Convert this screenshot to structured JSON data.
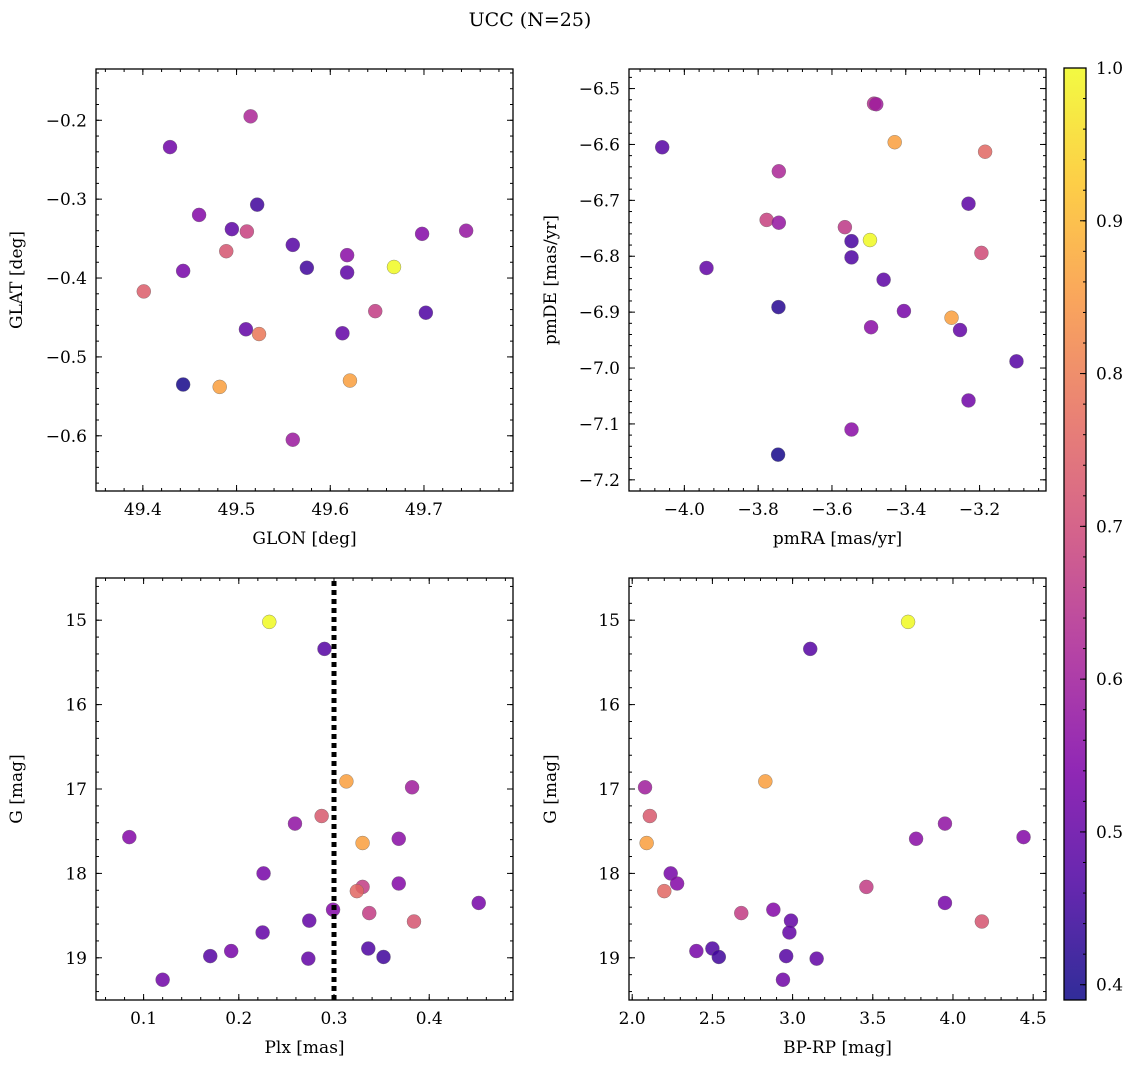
{
  "figure_title": "UCC (N=25)",
  "colorbar": {
    "min": 0.39,
    "max": 1.0,
    "ticks": [
      0.4,
      0.5,
      0.6,
      0.7,
      0.8,
      0.9,
      1.0
    ],
    "tick_labels": [
      "0.4",
      "0.5",
      "0.6",
      "0.7",
      "0.8",
      "0.9",
      "1.0"
    ],
    "colormap": "plasma"
  },
  "chart_data": [
    {
      "type": "scatter",
      "xlabel": "GLON [deg]",
      "ylabel": "GLAT [deg]",
      "xlim": [
        49.35,
        49.795
      ],
      "ylim": [
        -0.67,
        -0.135
      ],
      "xticks": [
        49.4,
        49.5,
        49.6,
        49.7
      ],
      "xtick_labels": [
        "49.4",
        "49.5",
        "49.6",
        "49.7"
      ],
      "yticks": [
        -0.2,
        -0.3,
        -0.4,
        -0.5,
        -0.6
      ],
      "ytick_labels": [
        "−0.2",
        "−0.3",
        "−0.4",
        "−0.5",
        "−0.6"
      ],
      "y_inverted": false,
      "points": [
        {
          "x": 49.429,
          "y": -0.234,
          "c": 0.52
        },
        {
          "x": 49.515,
          "y": -0.195,
          "c": 0.62
        },
        {
          "x": 49.46,
          "y": -0.32,
          "c": 0.55
        },
        {
          "x": 49.495,
          "y": -0.338,
          "c": 0.49
        },
        {
          "x": 49.511,
          "y": -0.341,
          "c": 0.68
        },
        {
          "x": 49.522,
          "y": -0.307,
          "c": 0.45
        },
        {
          "x": 49.489,
          "y": -0.366,
          "c": 0.72
        },
        {
          "x": 49.443,
          "y": -0.391,
          "c": 0.53
        },
        {
          "x": 49.401,
          "y": -0.417,
          "c": 0.74
        },
        {
          "x": 49.56,
          "y": -0.358,
          "c": 0.48
        },
        {
          "x": 49.575,
          "y": -0.387,
          "c": 0.45
        },
        {
          "x": 49.618,
          "y": -0.371,
          "c": 0.56
        },
        {
          "x": 49.618,
          "y": -0.393,
          "c": 0.49
        },
        {
          "x": 49.668,
          "y": -0.386,
          "c": 1.0
        },
        {
          "x": 49.698,
          "y": -0.344,
          "c": 0.55
        },
        {
          "x": 49.745,
          "y": -0.34,
          "c": 0.58
        },
        {
          "x": 49.648,
          "y": -0.442,
          "c": 0.67
        },
        {
          "x": 49.702,
          "y": -0.444,
          "c": 0.47
        },
        {
          "x": 49.51,
          "y": -0.465,
          "c": 0.5
        },
        {
          "x": 49.524,
          "y": -0.471,
          "c": 0.79
        },
        {
          "x": 49.613,
          "y": -0.47,
          "c": 0.5
        },
        {
          "x": 49.443,
          "y": -0.535,
          "c": 0.4
        },
        {
          "x": 49.482,
          "y": -0.538,
          "c": 0.86
        },
        {
          "x": 49.621,
          "y": -0.53,
          "c": 0.86
        },
        {
          "x": 49.56,
          "y": -0.605,
          "c": 0.59
        }
      ]
    },
    {
      "type": "scatter",
      "xlabel": "pmRA [mas/yr]",
      "ylabel": "pmDE [mas/yr]",
      "xlim": [
        -4.15,
        -3.02
      ],
      "ylim": [
        -7.22,
        -6.465
      ],
      "xticks": [
        -4.0,
        -3.8,
        -3.6,
        -3.4,
        -3.2
      ],
      "xtick_labels": [
        "−4.0",
        "−3.8",
        "−3.6",
        "−3.4",
        "−3.2"
      ],
      "yticks": [
        -6.5,
        -6.6,
        -6.7,
        -6.8,
        -6.9,
        -7.0,
        -7.1,
        -7.2
      ],
      "ytick_labels": [
        "−6.5",
        "−6.6",
        "−6.7",
        "−6.8",
        "−6.9",
        "−7.0",
        "−7.1",
        "−7.2"
      ],
      "y_inverted": false,
      "points": [
        {
          "x": -4.06,
          "y": -6.605,
          "c": 0.48
        },
        {
          "x": -3.94,
          "y": -6.821,
          "c": 0.5
        },
        {
          "x": -3.744,
          "y": -6.648,
          "c": 0.62
        },
        {
          "x": -3.777,
          "y": -6.735,
          "c": 0.68
        },
        {
          "x": -3.744,
          "y": -6.74,
          "c": 0.58
        },
        {
          "x": -3.745,
          "y": -6.891,
          "c": 0.42
        },
        {
          "x": -3.746,
          "y": -7.155,
          "c": 0.4
        },
        {
          "x": -3.565,
          "y": -6.748,
          "c": 0.66
        },
        {
          "x": -3.547,
          "y": -6.773,
          "c": 0.46
        },
        {
          "x": -3.547,
          "y": -6.802,
          "c": 0.47
        },
        {
          "x": -3.547,
          "y": -7.11,
          "c": 0.56
        },
        {
          "x": -3.497,
          "y": -6.771,
          "c": 1.0
        },
        {
          "x": -3.486,
          "y": -6.527,
          "c": 0.64
        },
        {
          "x": -3.48,
          "y": -6.528,
          "c": 0.6
        },
        {
          "x": -3.46,
          "y": -6.842,
          "c": 0.49
        },
        {
          "x": -3.43,
          "y": -6.596,
          "c": 0.86
        },
        {
          "x": -3.405,
          "y": -6.898,
          "c": 0.53
        },
        {
          "x": -3.494,
          "y": -6.927,
          "c": 0.56
        },
        {
          "x": -3.276,
          "y": -6.91,
          "c": 0.86
        },
        {
          "x": -3.253,
          "y": -6.932,
          "c": 0.5
        },
        {
          "x": -3.23,
          "y": -6.706,
          "c": 0.49
        },
        {
          "x": -3.23,
          "y": -7.058,
          "c": 0.52
        },
        {
          "x": -3.195,
          "y": -6.794,
          "c": 0.7
        },
        {
          "x": -3.185,
          "y": -6.613,
          "c": 0.76
        },
        {
          "x": -3.1,
          "y": -6.988,
          "c": 0.48
        }
      ]
    },
    {
      "type": "scatter",
      "xlabel": "Plx [mas]",
      "ylabel": "G [mag]",
      "xlim": [
        0.05,
        0.488
      ],
      "ylim": [
        14.5,
        19.5
      ],
      "xticks": [
        0.1,
        0.2,
        0.3,
        0.4
      ],
      "xtick_labels": [
        "0.1",
        "0.2",
        "0.3",
        "0.4"
      ],
      "yticks": [
        15,
        16,
        17,
        18,
        19
      ],
      "ytick_labels": [
        "15",
        "16",
        "17",
        "18",
        "19"
      ],
      "y_inverted": true,
      "vline": {
        "x": 0.3,
        "style": "dotted"
      },
      "points": [
        {
          "x": 0.232,
          "y": 15.02,
          "c": 1.0
        },
        {
          "x": 0.29,
          "y": 15.34,
          "c": 0.48
        },
        {
          "x": 0.313,
          "y": 16.91,
          "c": 0.86
        },
        {
          "x": 0.382,
          "y": 16.98,
          "c": 0.6
        },
        {
          "x": 0.085,
          "y": 17.57,
          "c": 0.55
        },
        {
          "x": 0.259,
          "y": 17.41,
          "c": 0.57
        },
        {
          "x": 0.287,
          "y": 17.32,
          "c": 0.73
        },
        {
          "x": 0.33,
          "y": 17.64,
          "c": 0.86
        },
        {
          "x": 0.368,
          "y": 17.59,
          "c": 0.56
        },
        {
          "x": 0.226,
          "y": 18.0,
          "c": 0.53
        },
        {
          "x": 0.368,
          "y": 18.12,
          "c": 0.55
        },
        {
          "x": 0.33,
          "y": 18.16,
          "c": 0.67
        },
        {
          "x": 0.324,
          "y": 18.21,
          "c": 0.76
        },
        {
          "x": 0.337,
          "y": 18.47,
          "c": 0.67
        },
        {
          "x": 0.299,
          "y": 18.43,
          "c": 0.55
        },
        {
          "x": 0.452,
          "y": 18.35,
          "c": 0.53
        },
        {
          "x": 0.384,
          "y": 18.57,
          "c": 0.72
        },
        {
          "x": 0.274,
          "y": 18.56,
          "c": 0.5
        },
        {
          "x": 0.225,
          "y": 18.7,
          "c": 0.5
        },
        {
          "x": 0.336,
          "y": 18.89,
          "c": 0.47
        },
        {
          "x": 0.192,
          "y": 18.92,
          "c": 0.53
        },
        {
          "x": 0.17,
          "y": 18.98,
          "c": 0.48
        },
        {
          "x": 0.273,
          "y": 19.01,
          "c": 0.5
        },
        {
          "x": 0.352,
          "y": 18.99,
          "c": 0.45
        },
        {
          "x": 0.12,
          "y": 19.26,
          "c": 0.52
        }
      ]
    },
    {
      "type": "scatter",
      "xlabel": "BP-RP [mag]",
      "ylabel": "G [mag]",
      "xlim": [
        1.98,
        4.58
      ],
      "ylim": [
        14.5,
        19.5
      ],
      "xticks": [
        2.0,
        2.5,
        3.0,
        3.5,
        4.0,
        4.5
      ],
      "xtick_labels": [
        "2.0",
        "2.5",
        "3.0",
        "3.5",
        "4.0",
        "4.5"
      ],
      "yticks": [
        15,
        16,
        17,
        18,
        19
      ],
      "ytick_labels": [
        "15",
        "16",
        "17",
        "18",
        "19"
      ],
      "y_inverted": true,
      "points": [
        {
          "x": 3.72,
          "y": 15.02,
          "c": 1.0
        },
        {
          "x": 3.11,
          "y": 15.34,
          "c": 0.48
        },
        {
          "x": 2.83,
          "y": 16.91,
          "c": 0.86
        },
        {
          "x": 2.08,
          "y": 16.98,
          "c": 0.6
        },
        {
          "x": 2.11,
          "y": 17.32,
          "c": 0.73
        },
        {
          "x": 2.09,
          "y": 17.64,
          "c": 0.86
        },
        {
          "x": 3.95,
          "y": 17.41,
          "c": 0.57
        },
        {
          "x": 3.77,
          "y": 17.59,
          "c": 0.56
        },
        {
          "x": 4.44,
          "y": 17.57,
          "c": 0.55
        },
        {
          "x": 2.24,
          "y": 18.0,
          "c": 0.53
        },
        {
          "x": 2.28,
          "y": 18.12,
          "c": 0.55
        },
        {
          "x": 2.2,
          "y": 18.21,
          "c": 0.76
        },
        {
          "x": 3.46,
          "y": 18.16,
          "c": 0.67
        },
        {
          "x": 2.68,
          "y": 18.47,
          "c": 0.67
        },
        {
          "x": 2.88,
          "y": 18.43,
          "c": 0.55
        },
        {
          "x": 2.99,
          "y": 18.56,
          "c": 0.5
        },
        {
          "x": 2.98,
          "y": 18.7,
          "c": 0.5
        },
        {
          "x": 3.95,
          "y": 18.35,
          "c": 0.53
        },
        {
          "x": 4.18,
          "y": 18.57,
          "c": 0.72
        },
        {
          "x": 2.4,
          "y": 18.92,
          "c": 0.53
        },
        {
          "x": 2.5,
          "y": 18.89,
          "c": 0.47
        },
        {
          "x": 2.54,
          "y": 18.99,
          "c": 0.45
        },
        {
          "x": 2.96,
          "y": 18.98,
          "c": 0.48
        },
        {
          "x": 3.15,
          "y": 19.01,
          "c": 0.5
        },
        {
          "x": 2.94,
          "y": 19.26,
          "c": 0.52
        }
      ]
    }
  ]
}
